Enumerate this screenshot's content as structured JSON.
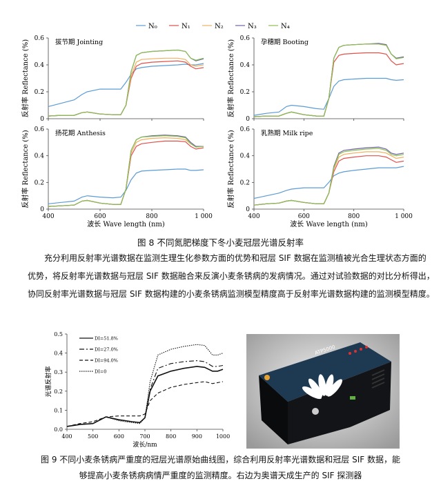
{
  "figure8": {
    "caption": "图 8  不同氮肥梯度下冬小麦冠层光谱反射率",
    "legend": [
      {
        "name": "N₀",
        "color": "#5b9bd5"
      },
      {
        "name": "N₁",
        "color": "#e0504a"
      },
      {
        "name": "N₂",
        "color": "#f0b060"
      },
      {
        "name": "N₃",
        "color": "#7060a8"
      },
      {
        "name": "N₄",
        "color": "#8cbf50"
      }
    ]
  },
  "paragraph": {
    "lines": [
      "充分利用反射率光谱数据在监测生理生化参数方面的优势和冠层 SIF 数据在监测植被光合生理状态方面的",
      "优势，将反射率光谱数据与冠层 SIF 数据融合来反演小麦条锈病的发病情况。通过对试验数据的对比分析得出，",
      "协同反射率光谱数据与冠层 SIF 数据构建的小麦条锈病监测模型精度高于反射率光谱数据构建的监测模型精度。"
    ]
  },
  "figure9": {
    "caption_lines": [
      "图 9 不同小麦条锈病严重度的冠层光谱原始曲线图，综合利用反射率光谱数据和冠层 SIF 数据，能",
      "够提高小麦条锈病病情严重度的监测精度。右边为奥谱天成生产的 SIF 探测器"
    ],
    "photo": {
      "brand_text": "ATP5000"
    }
  },
  "chart_data": [
    {
      "type": "line",
      "title": "拔节期 Jointing",
      "xlabel": "波长 Wave length (nm)",
      "ylabel": "反射率 Reflectance (%)",
      "xlim": [
        400,
        1000
      ],
      "ylim": [
        0,
        0.6
      ],
      "yticks": [
        "0",
        "0.2",
        "0.4",
        "0.6"
      ],
      "xticks": [
        "400",
        "600",
        "800",
        "1 000"
      ],
      "x": [
        400,
        450,
        500,
        530,
        550,
        600,
        650,
        680,
        700,
        720,
        740,
        760,
        800,
        850,
        900,
        930,
        950,
        970,
        1000
      ],
      "series": [
        {
          "name": "N₀",
          "values": [
            0.09,
            0.115,
            0.14,
            0.18,
            0.2,
            0.22,
            0.22,
            0.22,
            0.27,
            0.33,
            0.37,
            0.38,
            0.39,
            0.395,
            0.4,
            0.405,
            0.4,
            0.4,
            0.41
          ]
        },
        {
          "name": "N₁",
          "values": [
            0.02,
            0.025,
            0.025,
            0.045,
            0.05,
            0.035,
            0.03,
            0.03,
            0.1,
            0.3,
            0.39,
            0.41,
            0.42,
            0.425,
            0.43,
            0.42,
            0.39,
            0.37,
            0.38
          ]
        },
        {
          "name": "N₂",
          "values": [
            0.02,
            0.025,
            0.025,
            0.045,
            0.05,
            0.035,
            0.03,
            0.03,
            0.1,
            0.32,
            0.42,
            0.44,
            0.445,
            0.45,
            0.45,
            0.44,
            0.4,
            0.39,
            0.4
          ]
        },
        {
          "name": "N₃",
          "values": [
            0.02,
            0.025,
            0.025,
            0.045,
            0.05,
            0.035,
            0.03,
            0.03,
            0.1,
            0.35,
            0.47,
            0.49,
            0.5,
            0.505,
            0.51,
            0.5,
            0.45,
            0.43,
            0.445
          ]
        },
        {
          "name": "N₄",
          "values": [
            0.02,
            0.025,
            0.025,
            0.045,
            0.05,
            0.035,
            0.03,
            0.03,
            0.1,
            0.35,
            0.47,
            0.49,
            0.5,
            0.505,
            0.51,
            0.5,
            0.45,
            0.435,
            0.45
          ]
        }
      ]
    },
    {
      "type": "line",
      "title": "孕穗期 Booting",
      "xlabel": "波长 Wave length (nm)",
      "ylabel": "反射率 Reflectance (%)",
      "xlim": [
        400,
        1000
      ],
      "ylim": [
        0,
        0.6
      ],
      "yticks": [
        "0",
        "0.2",
        "0.4",
        "0.6"
      ],
      "xticks": [
        "400",
        "600",
        "800",
        "1 000"
      ],
      "x": [
        400,
        450,
        500,
        530,
        550,
        600,
        650,
        680,
        700,
        720,
        740,
        760,
        800,
        850,
        900,
        930,
        950,
        970,
        1000
      ],
      "series": [
        {
          "name": "N₀",
          "values": [
            0.025,
            0.04,
            0.05,
            0.09,
            0.1,
            0.09,
            0.075,
            0.07,
            0.15,
            0.24,
            0.28,
            0.29,
            0.295,
            0.3,
            0.3,
            0.3,
            0.29,
            0.285,
            0.29
          ]
        },
        {
          "name": "N₁",
          "values": [
            0.015,
            0.02,
            0.02,
            0.04,
            0.05,
            0.03,
            0.02,
            0.02,
            0.15,
            0.42,
            0.47,
            0.48,
            0.485,
            0.49,
            0.49,
            0.48,
            0.43,
            0.4,
            0.41
          ]
        },
        {
          "name": "N₂",
          "values": [
            0.015,
            0.02,
            0.02,
            0.04,
            0.05,
            0.03,
            0.02,
            0.02,
            0.15,
            0.45,
            0.53,
            0.545,
            0.55,
            0.555,
            0.555,
            0.545,
            0.48,
            0.45,
            0.46
          ]
        },
        {
          "name": "N₃",
          "values": [
            0.015,
            0.02,
            0.02,
            0.04,
            0.05,
            0.03,
            0.02,
            0.02,
            0.15,
            0.45,
            0.53,
            0.545,
            0.55,
            0.555,
            0.56,
            0.55,
            0.48,
            0.45,
            0.46
          ]
        },
        {
          "name": "N₄",
          "values": [
            0.015,
            0.02,
            0.02,
            0.04,
            0.05,
            0.03,
            0.02,
            0.02,
            0.15,
            0.45,
            0.53,
            0.545,
            0.55,
            0.555,
            0.555,
            0.545,
            0.48,
            0.445,
            0.455
          ]
        }
      ]
    },
    {
      "type": "line",
      "title": "扬花期 Anthesis",
      "xlabel": "波长 Wave length (nm)",
      "ylabel": "反射率 Reflectance (%)",
      "xlim": [
        400,
        1000
      ],
      "ylim": [
        0,
        0.6
      ],
      "yticks": [
        "0",
        "0.2",
        "0.4",
        "0.6"
      ],
      "xticks": [
        "400",
        "600",
        "800",
        "1 000"
      ],
      "x": [
        400,
        450,
        500,
        530,
        550,
        600,
        650,
        680,
        700,
        720,
        740,
        760,
        800,
        850,
        900,
        930,
        950,
        970,
        1000
      ],
      "series": [
        {
          "name": "N₀",
          "values": [
            0.04,
            0.05,
            0.06,
            0.09,
            0.1,
            0.09,
            0.085,
            0.09,
            0.14,
            0.22,
            0.27,
            0.285,
            0.29,
            0.295,
            0.3,
            0.3,
            0.29,
            0.29,
            0.295
          ]
        },
        {
          "name": "N₁",
          "values": [
            0.02,
            0.025,
            0.03,
            0.06,
            0.065,
            0.045,
            0.035,
            0.035,
            0.15,
            0.4,
            0.47,
            0.49,
            0.5,
            0.51,
            0.51,
            0.505,
            0.47,
            0.45,
            0.46
          ]
        },
        {
          "name": "N₂",
          "values": [
            0.02,
            0.025,
            0.03,
            0.06,
            0.065,
            0.045,
            0.035,
            0.035,
            0.15,
            0.42,
            0.5,
            0.52,
            0.53,
            0.535,
            0.53,
            0.52,
            0.49,
            0.47,
            0.47
          ]
        },
        {
          "name": "N₃",
          "values": [
            0.02,
            0.025,
            0.03,
            0.06,
            0.065,
            0.045,
            0.035,
            0.035,
            0.15,
            0.44,
            0.52,
            0.54,
            0.55,
            0.555,
            0.55,
            0.54,
            0.5,
            0.47,
            0.47
          ]
        },
        {
          "name": "N₄",
          "values": [
            0.02,
            0.025,
            0.03,
            0.06,
            0.065,
            0.045,
            0.035,
            0.035,
            0.15,
            0.44,
            0.52,
            0.54,
            0.545,
            0.55,
            0.545,
            0.535,
            0.49,
            0.465,
            0.47
          ]
        }
      ]
    },
    {
      "type": "line",
      "title": "乳熟期 Milk ripe",
      "xlabel": "波长 Wave length (nm)",
      "ylabel": "反射率 Reflectance (%)",
      "xlim": [
        400,
        1000
      ],
      "ylim": [
        0,
        0.6
      ],
      "yticks": [
        "0",
        "0.2",
        "0.4",
        "0.6"
      ],
      "xticks": [
        "400",
        "600",
        "800",
        "1 000"
      ],
      "x": [
        400,
        450,
        500,
        530,
        550,
        600,
        650,
        680,
        700,
        720,
        740,
        760,
        800,
        850,
        900,
        930,
        950,
        970,
        1000
      ],
      "series": [
        {
          "name": "N₀",
          "values": [
            0.08,
            0.1,
            0.12,
            0.14,
            0.15,
            0.16,
            0.16,
            0.16,
            0.2,
            0.25,
            0.27,
            0.28,
            0.29,
            0.3,
            0.31,
            0.31,
            0.31,
            0.31,
            0.32
          ]
        },
        {
          "name": "N₁",
          "values": [
            0.03,
            0.04,
            0.045,
            0.06,
            0.065,
            0.05,
            0.04,
            0.04,
            0.12,
            0.28,
            0.36,
            0.38,
            0.39,
            0.4,
            0.4,
            0.39,
            0.37,
            0.35,
            0.36
          ]
        },
        {
          "name": "N₂",
          "values": [
            0.03,
            0.04,
            0.045,
            0.06,
            0.065,
            0.05,
            0.04,
            0.04,
            0.12,
            0.3,
            0.39,
            0.41,
            0.42,
            0.43,
            0.43,
            0.42,
            0.4,
            0.38,
            0.39
          ]
        },
        {
          "name": "N₃",
          "values": [
            0.03,
            0.04,
            0.045,
            0.06,
            0.065,
            0.05,
            0.04,
            0.04,
            0.12,
            0.32,
            0.42,
            0.44,
            0.45,
            0.46,
            0.465,
            0.45,
            0.42,
            0.41,
            0.42
          ]
        },
        {
          "name": "N₄",
          "values": [
            0.03,
            0.04,
            0.045,
            0.06,
            0.065,
            0.05,
            0.04,
            0.04,
            0.12,
            0.31,
            0.41,
            0.43,
            0.44,
            0.45,
            0.455,
            0.44,
            0.41,
            0.4,
            0.41
          ]
        }
      ]
    },
    {
      "type": "line",
      "title": "",
      "xlabel": "波长/nm",
      "ylabel": "光谱反射率",
      "xlim": [
        400,
        1000
      ],
      "ylim": [
        0,
        0.5
      ],
      "yticks": [
        "0.0",
        "0.1",
        "0.2",
        "0.3",
        "0.4",
        "0.5"
      ],
      "xticks": [
        "400",
        "500",
        "600",
        "700",
        "800",
        "900",
        "1000"
      ],
      "x": [
        400,
        450,
        500,
        550,
        600,
        650,
        680,
        700,
        720,
        750,
        800,
        850,
        900,
        930,
        960,
        980,
        1000
      ],
      "series": [
        {
          "name": "DI=51.8%",
          "style": "solid",
          "values": [
            0.015,
            0.025,
            0.03,
            0.065,
            0.05,
            0.04,
            0.035,
            0.06,
            0.2,
            0.28,
            0.305,
            0.32,
            0.33,
            0.325,
            0.305,
            0.305,
            0.315
          ]
        },
        {
          "name": "DI=27.0%",
          "style": "dashdot",
          "values": [
            0.015,
            0.025,
            0.03,
            0.065,
            0.05,
            0.04,
            0.035,
            0.06,
            0.21,
            0.32,
            0.345,
            0.355,
            0.36,
            0.355,
            0.33,
            0.33,
            0.335
          ]
        },
        {
          "name": "DI=94.0%",
          "style": "dashed",
          "values": [
            0.015,
            0.03,
            0.04,
            0.065,
            0.07,
            0.07,
            0.07,
            0.08,
            0.15,
            0.19,
            0.22,
            0.235,
            0.245,
            0.25,
            0.24,
            0.245,
            0.25
          ]
        },
        {
          "name": "DI=0",
          "style": "dotted",
          "values": [
            0.015,
            0.025,
            0.03,
            0.065,
            0.045,
            0.035,
            0.03,
            0.06,
            0.25,
            0.39,
            0.42,
            0.435,
            0.445,
            0.44,
            0.39,
            0.39,
            0.4
          ]
        }
      ]
    }
  ]
}
